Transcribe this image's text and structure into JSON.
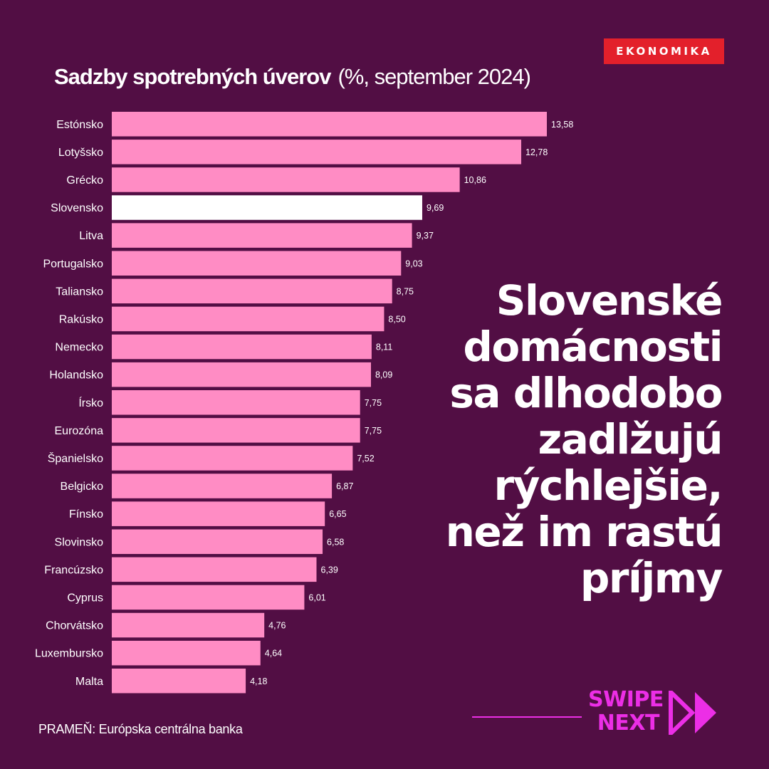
{
  "brand": {
    "label": "EKONOMIKA",
    "color": "#e3202b"
  },
  "colors": {
    "background": "#520e44",
    "bar": "#ff8cc4",
    "highlight": "#ffffff",
    "accent": "#ec2ee6"
  },
  "chart_data": {
    "type": "bar",
    "orientation": "horizontal",
    "title": "Sadzby spotrebných úverov",
    "subtitle": "(%, september 2024)",
    "categories": [
      "Estónsko",
      "Lotyšsko",
      "Grécko",
      "Slovensko",
      "Litva",
      "Portugalsko",
      "Taliansko",
      "Rakúsko",
      "Nemecko",
      "Holandsko",
      "Írsko",
      "Eurozóna",
      "Španielsko",
      "Belgicko",
      "Fínsko",
      "Slovinsko",
      "Francúzsko",
      "Cyprus",
      "Chorvátsko",
      "Luxembursko",
      "Malta"
    ],
    "values": [
      13.58,
      12.78,
      10.86,
      9.69,
      9.37,
      9.03,
      8.75,
      8.5,
      8.11,
      8.09,
      7.75,
      7.75,
      7.52,
      6.87,
      6.65,
      6.58,
      6.39,
      6.01,
      4.76,
      4.64,
      4.18
    ],
    "value_labels": [
      "13,58",
      "12,78",
      "10,86",
      "9,69",
      "9,37",
      "9,03",
      "8,75",
      "8,50",
      "8,11",
      "8,09",
      "7,75",
      "7,75",
      "7,52",
      "6,87",
      "6,65",
      "6,58",
      "6,39",
      "6,01",
      "4,76",
      "4,64",
      "4,18"
    ],
    "highlight": "Slovensko",
    "grid": false,
    "legend": "none"
  },
  "headline": {
    "lines": [
      "Slovenské",
      "domácnosti",
      "sa dlhodobo",
      "zadlžujú",
      "rýchlejšie,",
      "než im rastú",
      "príjmy"
    ]
  },
  "source": "PRAMEŇ: Európska centrálna banka",
  "swipe": {
    "line1": "SWIPE",
    "line2": "NEXT",
    "icon": "double-chevron-right-icon"
  }
}
